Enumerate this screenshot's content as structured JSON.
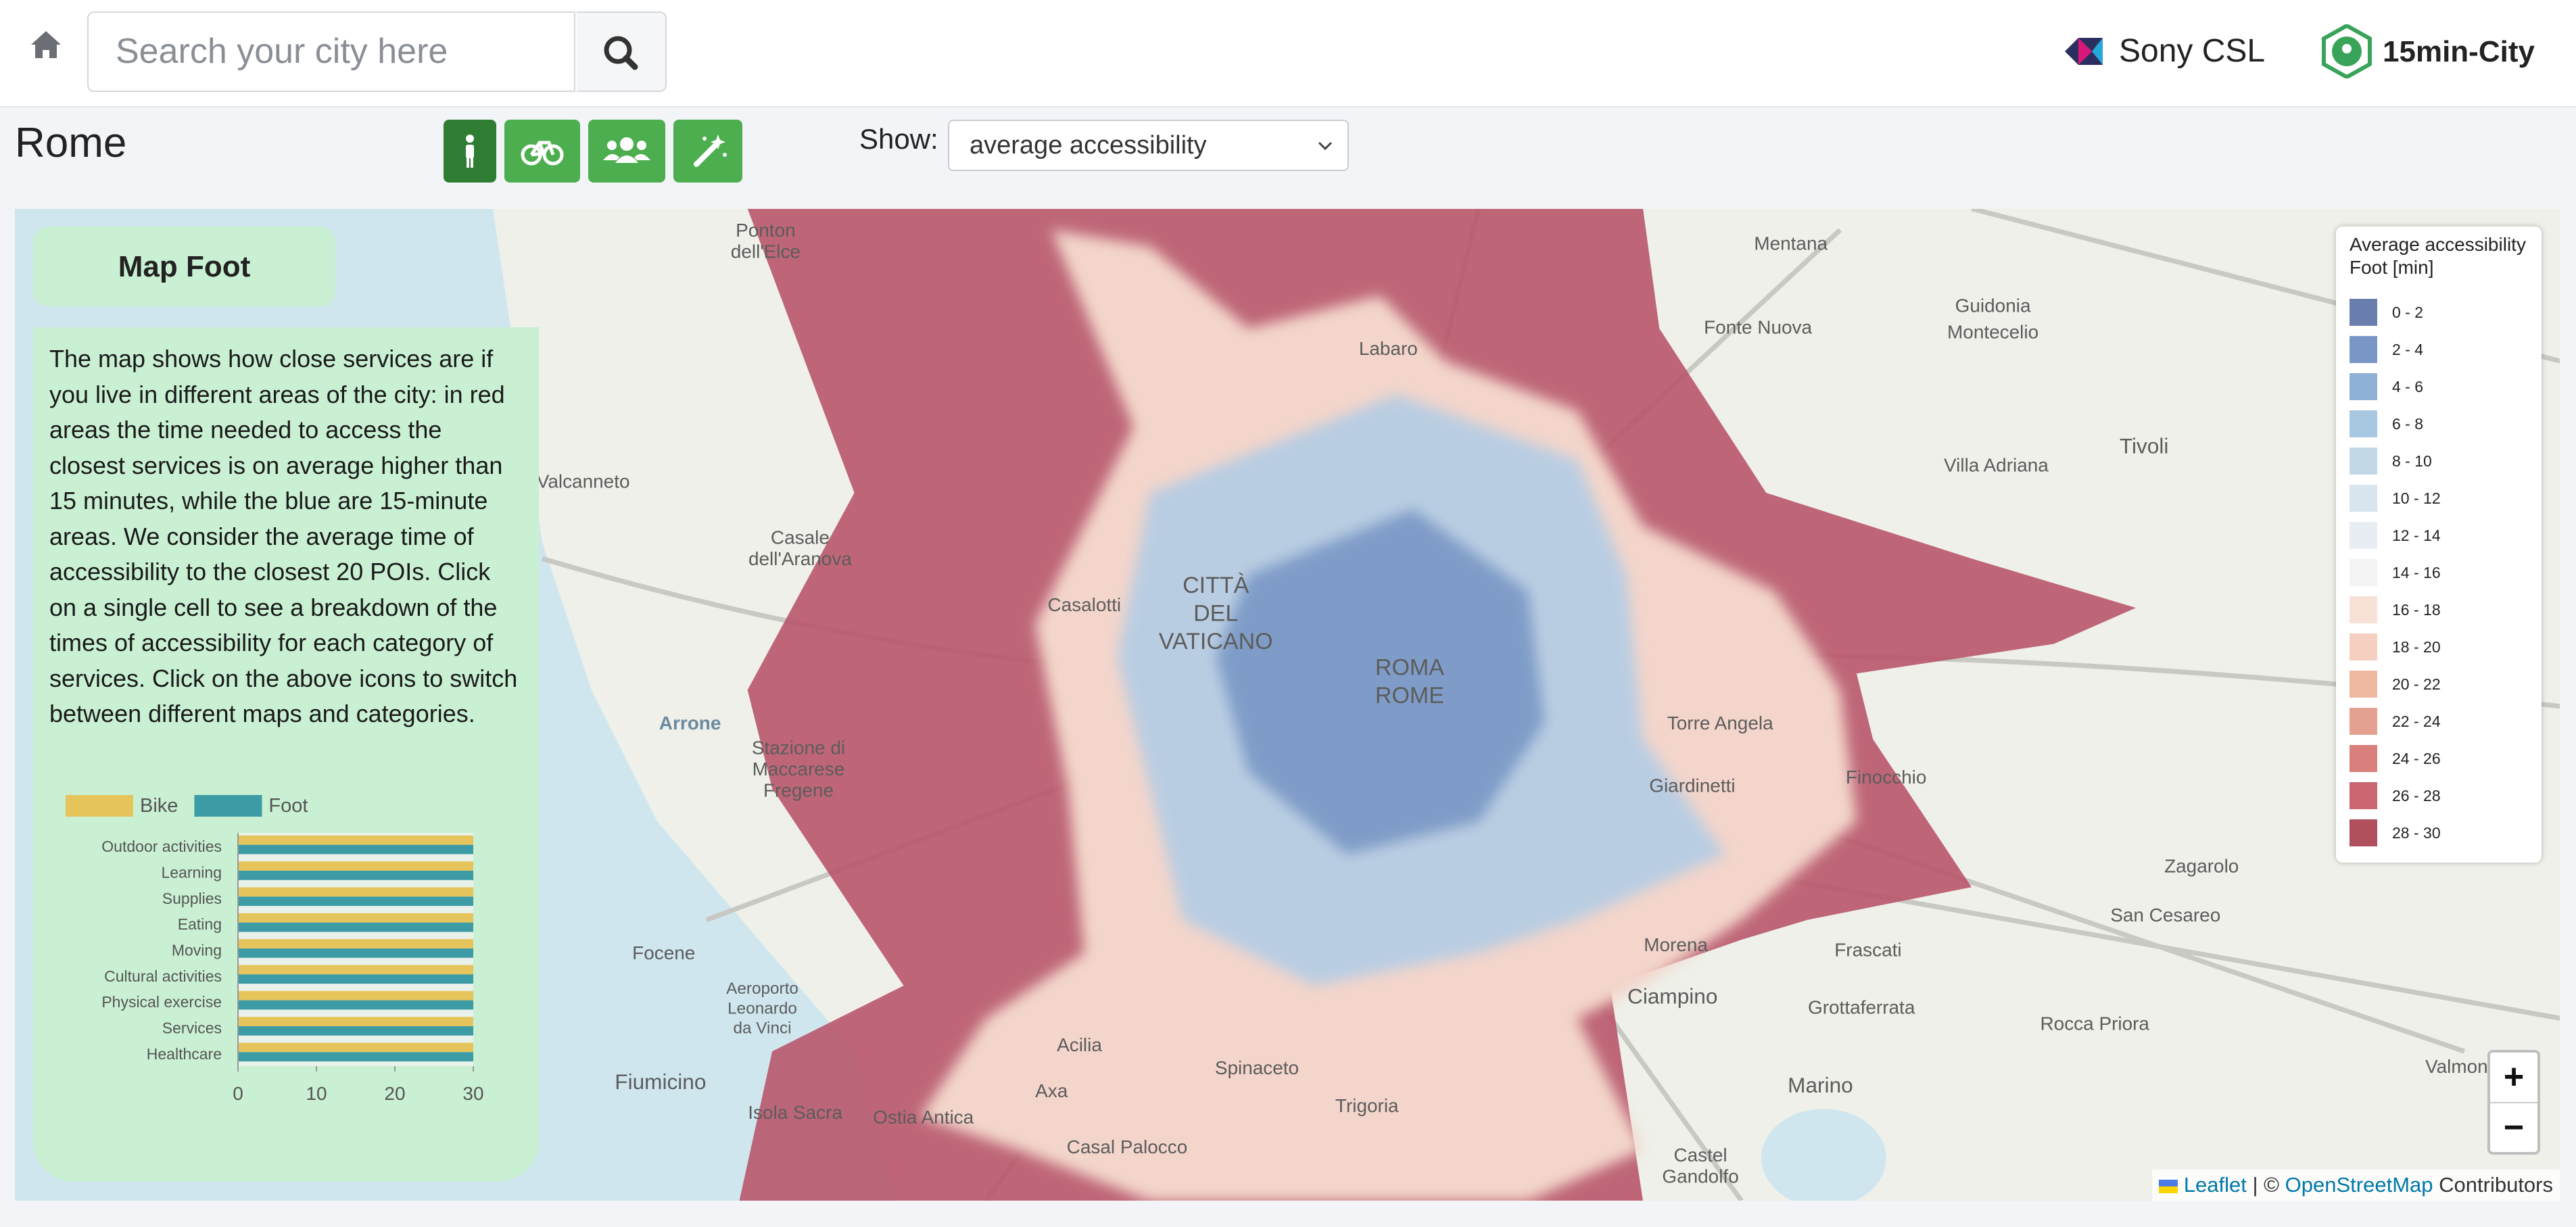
{
  "header": {
    "search_placeholder": "Search your city here",
    "brands": [
      "Sony CSL",
      "15min-City"
    ]
  },
  "city": "Rome",
  "show_label": "Show:",
  "show_selected": "average accessibility",
  "panel": {
    "title": "Map Foot",
    "text": "The map shows how close services are if you live in different areas of the city: in red areas the time needed to access the closest services is on average higher than 15 minutes, while the blue are 15-minute areas. We consider the average time of accessibility to the closest 20 POIs. Click on a single cell to see a breakdown of the times of accessibility for each category of services. Click on the above icons to switch between different maps and categories."
  },
  "chart_data": {
    "type": "bar",
    "orientation": "horizontal",
    "categories": [
      "Outdoor activities",
      "Learning",
      "Supplies",
      "Eating",
      "Moving",
      "Cultural activities",
      "Physical exercise",
      "Services",
      "Healthcare"
    ],
    "series": [
      {
        "name": "Bike",
        "color": "#e6c45c",
        "values": [
          30,
          30,
          30,
          30,
          30,
          30,
          30,
          30,
          30
        ]
      },
      {
        "name": "Foot",
        "color": "#3d9ba6",
        "values": [
          30,
          30,
          30,
          30,
          30,
          30,
          30,
          30,
          30
        ]
      }
    ],
    "xlim": [
      0,
      30
    ],
    "xticks": [
      0,
      10,
      20,
      30
    ],
    "grid": false,
    "legend": "top"
  },
  "map": {
    "labels": [
      "Mentana",
      "Guidonia",
      "Montecelio",
      "Fonte Nuova",
      "Tivoli",
      "Villa Adriana",
      "Labaro",
      "Ponton",
      "dell'Elce",
      "Valcanneto",
      "Casale",
      "dell'Aranova",
      "Arrone",
      "CITTÀ",
      "DEL",
      "VATICANO",
      "ROMA",
      "ROME",
      "Torre Angela",
      "Finocchio",
      "Giardinetti",
      "Zagarolo",
      "San Cesareo",
      "Frascati",
      "Grottaferrata",
      "Rocca Priora",
      "Ciampino",
      "Marino",
      "Focene",
      "Aeroporto",
      "Leonardo",
      "da Vinci",
      "Fiumicino",
      "Isola Sacra",
      "Ostia Antica",
      "Acilia",
      "Trigoria",
      "Castel",
      "Gandolfo",
      "Valmonte",
      "Morena",
      "Casalotti",
      "Casal Palocco",
      "Stazione di",
      "Maccarese",
      "Fregene",
      "Spinaceto",
      "Axa"
    ],
    "legend": {
      "title": "Average accessibility",
      "subtitle": "Foot [min]",
      "items": [
        {
          "label": "0 - 2",
          "color": "#6a7eae"
        },
        {
          "label": "2 - 4",
          "color": "#7a96c7"
        },
        {
          "label": "4 - 6",
          "color": "#8fb0d6"
        },
        {
          "label": "6 - 8",
          "color": "#a8c7e0"
        },
        {
          "label": "8 - 10",
          "color": "#c3d8e7"
        },
        {
          "label": "10 - 12",
          "color": "#d8e5ef"
        },
        {
          "label": "12 - 14",
          "color": "#e7edf3"
        },
        {
          "label": "14 - 16",
          "color": "#f3f3f3"
        },
        {
          "label": "16 - 18",
          "color": "#f8e2d8"
        },
        {
          "label": "18 - 20",
          "color": "#f5d0c0"
        },
        {
          "label": "20 - 22",
          "color": "#efb9a1"
        },
        {
          "label": "22 - 24",
          "color": "#e4a091"
        },
        {
          "label": "24 - 26",
          "color": "#d9807c"
        },
        {
          "label": "26 - 28",
          "color": "#c9666f"
        },
        {
          "label": "28 - 30",
          "color": "#b0505f"
        }
      ]
    },
    "zoom": [
      "+",
      "−"
    ],
    "attribution": [
      "Leaflet",
      "| ©",
      "OpenStreetMap",
      "Contributors"
    ]
  }
}
